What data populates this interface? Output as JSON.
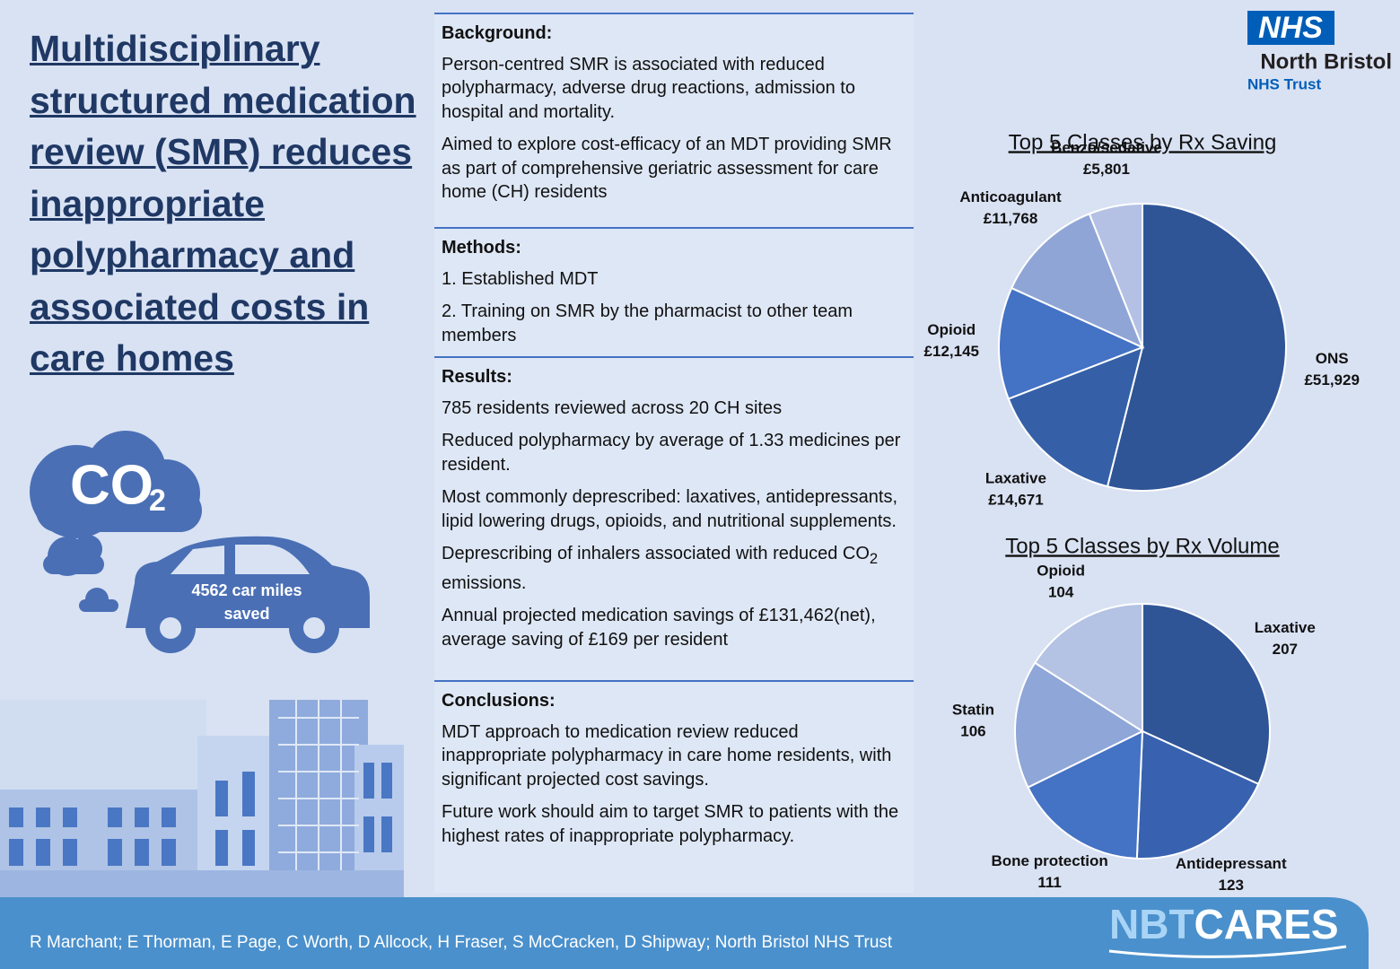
{
  "title": "Multidisciplinary structured medication review (SMR) reduces inappropriate polypharmacy and associated costs in care homes",
  "logo": {
    "nhs": "NHS",
    "org": "North Bristol",
    "trust": "NHS Trust"
  },
  "illustration": {
    "co": "CO",
    "two": "2",
    "car_text": "4562 car miles saved"
  },
  "sections": [
    {
      "heading": "Background:",
      "paragraphs": [
        [
          {
            "text": "Person-centred SMR is associated with reduced polypharmacy, adverse drug reactions, admission to hospital and mortality."
          }
        ],
        [
          {
            "text": "Aimed to explore cost-efficacy of an MDT providing SMR as part of comprehensive geriatric assessment for care home (CH) residents"
          }
        ]
      ]
    },
    {
      "heading": "Methods:",
      "paragraphs": [
        [
          {
            "text": "1. Established MDT"
          }
        ],
        [
          {
            "text": "2. Training on SMR by the pharmacist to other team members"
          }
        ]
      ]
    },
    {
      "heading": "Results:",
      "paragraphs": [
        [
          {
            "text": "785 residents reviewed across 20 CH sites"
          }
        ],
        [
          {
            "text": "Reduced polypharmacy by average of 1.33 medicines per resident."
          }
        ],
        [
          {
            "text": "Most commonly deprescribed: laxatives, antidepressants, lipid lowering drugs, opioids, and nutritional supplements."
          }
        ],
        [
          {
            "text": "Deprescribing of inhalers associated with reduced CO"
          },
          {
            "text": "2",
            "subscript": true
          },
          {
            "text": " emissions."
          }
        ],
        [
          {
            "text": "Annual projected medication savings of £131,462(net), average saving of £169 per resident"
          }
        ]
      ]
    },
    {
      "heading": "Conclusions:",
      "paragraphs": [
        [
          {
            "text": "MDT approach to medication review reduced inappropriate polypharmacy in care home residents, with significant projected cost savings."
          }
        ],
        [
          {
            "text": "Future work should aim to target SMR to patients with the highest rates of inappropriate polypharmacy."
          }
        ]
      ]
    }
  ],
  "chart_data": [
    {
      "type": "pie",
      "title": "Top 5 Classes by Rx Saving",
      "categories": [
        "ONS",
        "Laxative",
        "Opioid",
        "Anticoagulant",
        "Benzo/sedative"
      ],
      "values": [
        51929,
        14671,
        12145,
        11768,
        5801
      ],
      "value_labels": [
        "£51,929",
        "£14,671",
        "£12,145",
        "£11,768",
        "£5,801"
      ],
      "colors": [
        "#2f5597",
        "#3560a8",
        "#4472c4",
        "#8fa5d6",
        "#b4c1e4"
      ]
    },
    {
      "type": "pie",
      "title": "Top 5 Classes by Rx Volume",
      "categories": [
        "Laxative",
        "Antidepressant",
        "Bone protection",
        "Statin",
        "Opioid"
      ],
      "values": [
        207,
        123,
        111,
        106,
        104
      ],
      "colors": [
        "#2f5597",
        "#3862b0",
        "#4472c4",
        "#8fa6d8",
        "#b4c2e4"
      ]
    }
  ],
  "footer": {
    "authors": "R Marchant; E Thorman, E Page, C Worth, D Allcock, H Fraser, S McCracken, D Shipway; North Bristol NHS Trust",
    "brand_a": "NBT",
    "brand_b": "CARES"
  }
}
